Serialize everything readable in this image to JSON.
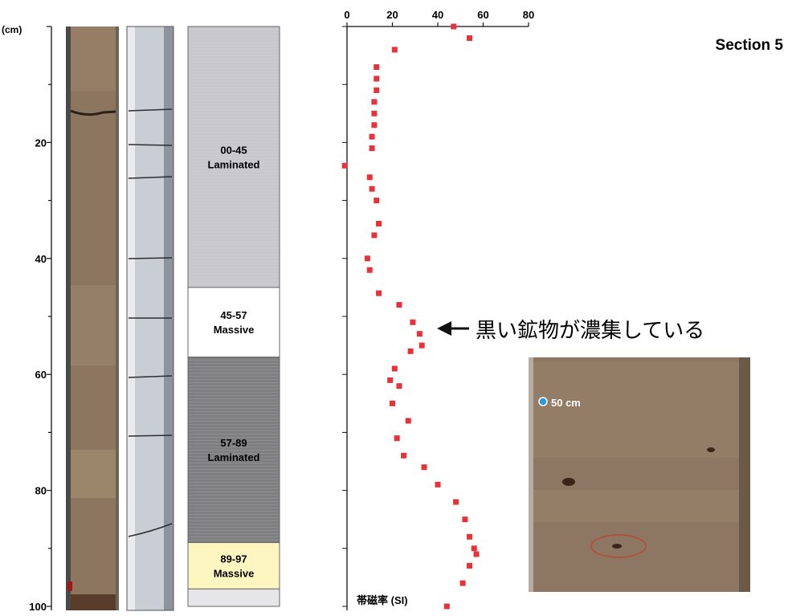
{
  "section_title": "Section 5",
  "depth_axis": {
    "unit_label": "(cm)",
    "ticks": [
      "20",
      "40",
      "60",
      "80",
      "100"
    ],
    "tick_values": [
      20,
      40,
      60,
      80,
      100
    ],
    "range": [
      0,
      100
    ]
  },
  "units": [
    {
      "range_label": "00-45",
      "type_label": "Laminated",
      "top": 0,
      "bottom": 45,
      "fill": "#c7c7cc"
    },
    {
      "range_label": "45-57",
      "type_label": "Massive",
      "top": 45,
      "bottom": 57,
      "fill": "#ffffff"
    },
    {
      "range_label": "57-89",
      "type_label": "Laminated",
      "top": 57,
      "bottom": 89,
      "fill": "#7f7f82"
    },
    {
      "range_label": "89-97",
      "type_label": "Massive",
      "top": 89,
      "bottom": 97,
      "fill": "#fdf6c0"
    }
  ],
  "annotation": "黒い鉱物が濃集している",
  "inset_label": "50 cm",
  "colors": {
    "points": "#e8323a",
    "inset_marker": "#2a9ad8",
    "core_photo": "#8d7660",
    "ct_scan": "#c9cdd4"
  },
  "chart_data": {
    "type": "scatter",
    "xlabel": "帯磁率 (SI)",
    "ylabel": "(cm)",
    "xlim": [
      0,
      80
    ],
    "ylim": [
      100,
      0
    ],
    "x_axis_position": "top",
    "x_ticks": [
      "0",
      "20",
      "40",
      "60",
      "80"
    ],
    "x_tick_values": [
      0,
      20,
      40,
      60,
      80
    ],
    "grid": false,
    "series": [
      {
        "x": [
          47,
          54,
          21,
          13,
          13,
          13,
          12,
          12,
          12,
          11,
          11,
          -1,
          10,
          11,
          13,
          14,
          12,
          9,
          10,
          14,
          23,
          29,
          32,
          33,
          28,
          21,
          19,
          23,
          20,
          27,
          22,
          25,
          34,
          40,
          48,
          52,
          54,
          56,
          57,
          54,
          51,
          44
        ],
        "y": [
          0,
          2,
          4,
          7,
          9,
          11,
          13,
          15,
          17,
          19,
          21,
          24,
          26,
          28,
          30,
          34,
          36,
          40,
          42,
          46,
          48,
          51,
          53,
          55,
          56,
          59,
          61,
          62,
          65,
          68,
          71,
          74,
          76,
          79,
          82,
          85,
          88,
          90,
          91,
          93,
          96,
          100
        ]
      }
    ]
  }
}
